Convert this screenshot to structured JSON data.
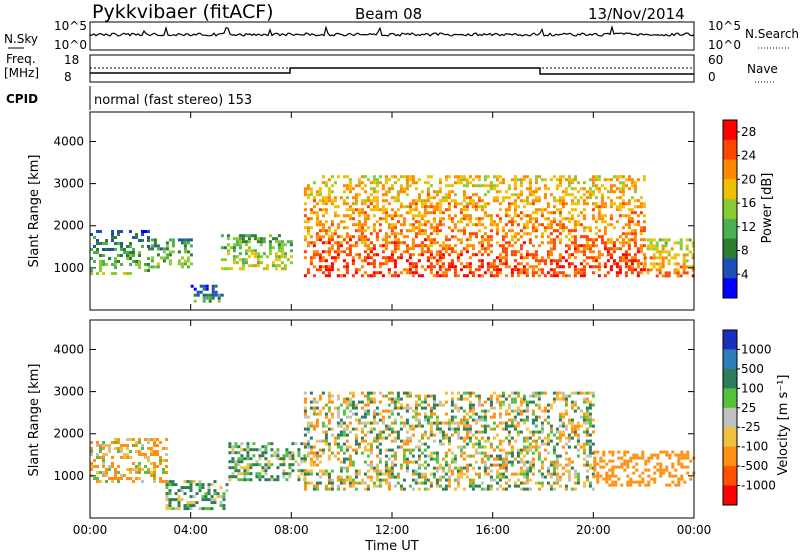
{
  "header": {
    "station": "Pykkvibaer (fitACF)",
    "beam": "Beam 08",
    "date": "13/Nov/2014"
  },
  "top_panels": {
    "noise": {
      "left_label": "N.Sky",
      "right_label": "N.Search",
      "left_ticks": [
        "10^5",
        "10^0"
      ],
      "right_ticks": [
        "10^5",
        "10^0"
      ]
    },
    "freq": {
      "left_label_1": "Freq.",
      "left_label_2": "[MHz]",
      "right_label": "Nave",
      "left_ticks": [
        "18",
        "8"
      ],
      "right_ticks": [
        "60",
        "0"
      ]
    },
    "cpid": {
      "label": "CPID",
      "text": "normal (fast stereo) 153"
    }
  },
  "colors": {
    "power": [
      "#0000ff",
      "#1e4fb8",
      "#2e7d32",
      "#4caf50",
      "#88cc33",
      "#f0c000",
      "#ff8800",
      "#ff4400",
      "#ff0000"
    ],
    "velocity": [
      "#1a2fc0",
      "#2e7db8",
      "#2d7d5a",
      "#55c03a",
      "#c0c0c0",
      "#f0c040",
      "#ff9010",
      "#ff5000",
      "#ff0000"
    ]
  },
  "chart_data": [
    {
      "type": "heatmap",
      "title": "",
      "ylabel": "Slant Range [km]",
      "xlabel": "",
      "xlim": [
        "00:00",
        "24:00"
      ],
      "ylim": [
        0,
        4700
      ],
      "x_ticks": [
        "00:00",
        "04:00",
        "08:00",
        "12:00",
        "16:00",
        "20:00",
        "00:00"
      ],
      "y_ticks": [
        "1000",
        "2000",
        "3000",
        "4000"
      ],
      "colorbar": {
        "label": "Power [dB]",
        "ticks": [
          "4",
          "8",
          "12",
          "16",
          "20",
          "24",
          "28"
        ],
        "range": [
          0,
          30
        ]
      },
      "regions": [
        {
          "start": 0.0,
          "end": 2.3,
          "range_lo": 900,
          "range_hi": 1900,
          "value": 12
        },
        {
          "start": 2.3,
          "end": 4.0,
          "range_lo": 1000,
          "range_hi": 1700,
          "value": 14
        },
        {
          "start": 4.0,
          "end": 5.2,
          "range_lo": 200,
          "range_hi": 600,
          "value": 10
        },
        {
          "start": 5.2,
          "end": 8.0,
          "range_lo": 1000,
          "range_hi": 1800,
          "value": 16
        },
        {
          "start": 8.5,
          "end": 22.0,
          "range_lo": 800,
          "range_hi": 3200,
          "value": 24
        },
        {
          "start": 22.0,
          "end": 24.0,
          "range_lo": 800,
          "range_hi": 1700,
          "value": 22
        }
      ]
    },
    {
      "type": "heatmap",
      "title": "",
      "ylabel": "Slant Range [km]",
      "xlabel": "Time UT",
      "xlim": [
        "00:00",
        "24:00"
      ],
      "ylim": [
        0,
        4700
      ],
      "x_ticks": [
        "00:00",
        "04:00",
        "08:00",
        "12:00",
        "16:00",
        "20:00",
        "00:00"
      ],
      "y_ticks": [
        "1000",
        "2000",
        "3000",
        "4000"
      ],
      "colorbar": {
        "label": "Velocity [m s⁻¹]",
        "ticks": [
          "1000",
          "500",
          "100",
          "25",
          "-25",
          "-100",
          "-500",
          "-1000"
        ]
      },
      "regions": [
        {
          "start": 0.0,
          "end": 3.0,
          "range_lo": 900,
          "range_hi": 1900,
          "value": -100
        },
        {
          "start": 3.0,
          "end": 5.5,
          "range_lo": 200,
          "range_hi": 900,
          "value": 100
        },
        {
          "start": 5.5,
          "end": 8.5,
          "range_lo": 900,
          "range_hi": 1800,
          "value": 100
        },
        {
          "start": 8.5,
          "end": 20.0,
          "range_lo": 700,
          "range_hi": 3000,
          "value": 0
        },
        {
          "start": 20.0,
          "end": 24.0,
          "range_lo": 800,
          "range_hi": 1600,
          "value": -300
        }
      ]
    }
  ]
}
